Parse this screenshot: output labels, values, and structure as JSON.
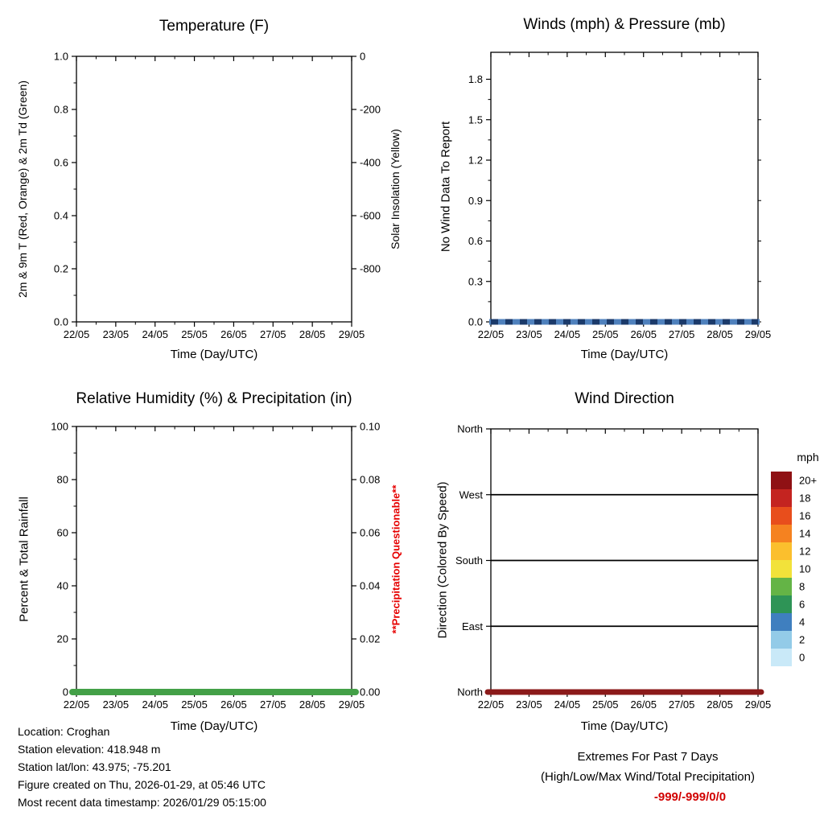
{
  "chart_data": [
    {
      "type": "line",
      "title": "Temperature (F)",
      "xlabel": "Time (Day/UTC)",
      "ylabel_left": "2m & 9m T (Red, Orange) & 2m Td (Green)",
      "ylabel_right": "Solar Insolation (Yellow)",
      "x_tick_labels": [
        "22/05",
        "23/05",
        "24/05",
        "25/05",
        "26/05",
        "27/05",
        "28/05",
        "29/05"
      ],
      "y_left_tick_labels": [
        "0.0",
        "0.2",
        "0.4",
        "0.6",
        "0.8",
        "1.0"
      ],
      "y_left_range": [
        0.0,
        1.0
      ],
      "y_right_tick_labels": [
        "0",
        "-200",
        "-400",
        "-600",
        "-800"
      ],
      "y_right_range": [
        0,
        -1000
      ],
      "series": []
    },
    {
      "type": "line",
      "title": "Winds (mph) & Pressure (mb)",
      "xlabel": "Time (Day/UTC)",
      "ylabel_left": "No Wind Data To Report",
      "x_tick_labels": [
        "22/05",
        "23/05",
        "24/05",
        "25/05",
        "26/05",
        "27/05",
        "28/05",
        "29/05"
      ],
      "y_left_tick_labels": [
        "0.0",
        "0.3",
        "0.6",
        "0.9",
        "1.2",
        "1.5",
        "1.8"
      ],
      "y_left_range": [
        0.0,
        2.0
      ],
      "series": [
        {
          "name": "wind flatline (no data)",
          "color": "#4f81bd",
          "overlay_dash_color": "#1b3a6a",
          "x": [
            "22/05",
            "29/05"
          ],
          "y": [
            0,
            0
          ]
        }
      ]
    },
    {
      "type": "line",
      "title": "Relative Humidity (%) & Precipitation (in)",
      "xlabel": "Time (Day/UTC)",
      "ylabel_left": "Percent & Total Rainfall",
      "right_note": "**Precipitation Questionable**",
      "right_note_color": "#e60000",
      "x_tick_labels": [
        "22/05",
        "23/05",
        "24/05",
        "25/05",
        "26/05",
        "27/05",
        "28/05",
        "29/05"
      ],
      "y_left_tick_labels": [
        "0",
        "20",
        "40",
        "60",
        "80",
        "100"
      ],
      "y_left_range": [
        0,
        100
      ],
      "y_right_tick_labels": [
        "0.00",
        "0.02",
        "0.04",
        "0.06",
        "0.08",
        "0.10"
      ],
      "y_right_range": [
        0.0,
        0.1
      ],
      "series": [
        {
          "name": "humidity/rainfall flatline",
          "color": "#43a047",
          "x": [
            "22/05",
            "29/05"
          ],
          "y": [
            0,
            0
          ]
        }
      ]
    },
    {
      "type": "line",
      "title": "Wind Direction",
      "xlabel": "Time (Day/UTC)",
      "ylabel_left": "Direction (Colored By Speed)",
      "y_category_labels": [
        "North",
        "West",
        "South",
        "East",
        "North"
      ],
      "x_tick_labels": [
        "22/05",
        "23/05",
        "24/05",
        "25/05",
        "26/05",
        "27/05",
        "28/05",
        "29/05"
      ],
      "series": [
        {
          "name": "wind direction flatline at North",
          "color": "#8b1a1a",
          "x": [
            "22/05",
            "29/05"
          ],
          "y": [
            "North",
            "North"
          ]
        }
      ],
      "colorbar": {
        "title": "mph",
        "entries": [
          {
            "label": "20+",
            "color": "#8f1114"
          },
          {
            "label": "18",
            "color": "#c42420"
          },
          {
            "label": "16",
            "color": "#e84e1c"
          },
          {
            "label": "14",
            "color": "#f58220"
          },
          {
            "label": "12",
            "color": "#fbbf2d"
          },
          {
            "label": "10",
            "color": "#f2e23a"
          },
          {
            "label": "8",
            "color": "#64b446"
          },
          {
            "label": "6",
            "color": "#2e9456"
          },
          {
            "label": "4",
            "color": "#3f7fbf"
          },
          {
            "label": "2",
            "color": "#93cbe8"
          },
          {
            "label": "0",
            "color": "#c9e9f8"
          }
        ]
      }
    }
  ],
  "footer": {
    "lines": [
      "Location: Croghan",
      "Station elevation: 418.948 m",
      "Station lat/lon: 43.975; -75.201",
      "Figure created on Thu, 2026-01-29, at 05:46 UTC",
      "Most recent data timestamp: 2026/01/29 05:15:00"
    ]
  },
  "extremes": {
    "line1": "Extremes For Past 7 Days",
    "line2": "(High/Low/Max Wind/Total Precipitation)",
    "values": "-999/-999/0/0",
    "values_color": "#d10000"
  }
}
